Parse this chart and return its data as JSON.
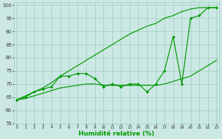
{
  "x": [
    0,
    1,
    2,
    3,
    4,
    5,
    6,
    7,
    8,
    9,
    10,
    11,
    12,
    13,
    14,
    15,
    16,
    17,
    18,
    19,
    20,
    21,
    22,
    23
  ],
  "line_jagged": [
    64,
    65,
    67,
    68,
    69,
    73,
    73,
    74,
    74,
    72,
    69,
    70,
    69,
    70,
    70,
    67,
    70,
    75,
    88,
    70,
    95,
    96,
    99,
    99
  ],
  "line_upper": [
    64,
    65.5,
    67,
    68.5,
    70.5,
    73,
    75,
    77,
    79,
    81,
    83,
    85,
    87,
    89,
    90.5,
    92,
    93,
    95,
    96,
    97.5,
    98.5,
    99,
    99,
    99
  ],
  "line_lower": [
    64,
    64.5,
    65.5,
    66.5,
    67.5,
    68.5,
    69,
    69.5,
    70,
    70,
    69.5,
    69.5,
    69.5,
    69.5,
    69.5,
    69.5,
    69.5,
    70,
    71,
    72,
    73,
    75,
    77,
    79
  ],
  "bg_color": "#cce8e4",
  "grid_color": "#99ccbb",
  "line_color": "#009900",
  "xlabel": "Humidité relative (%)",
  "ylim": [
    55,
    101
  ],
  "xlim": [
    -0.3,
    23.3
  ],
  "yticks": [
    55,
    60,
    65,
    70,
    75,
    80,
    85,
    90,
    95,
    100
  ],
  "xticks": [
    0,
    1,
    2,
    3,
    4,
    5,
    6,
    7,
    8,
    9,
    10,
    11,
    12,
    13,
    14,
    15,
    16,
    17,
    18,
    19,
    20,
    21,
    22,
    23
  ]
}
